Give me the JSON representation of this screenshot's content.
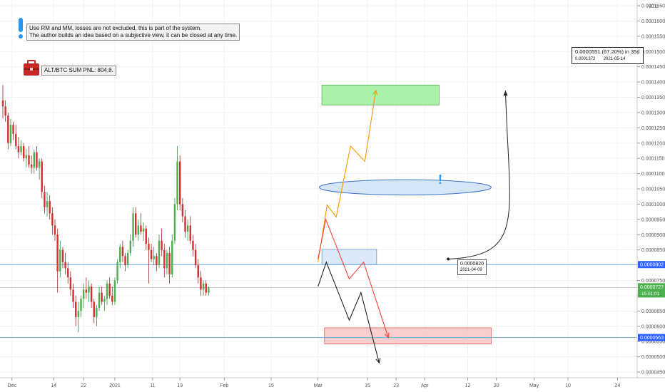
{
  "chart_data": {
    "type": "candlestick",
    "currency_label": "BTC",
    "ylim": [
      4.5e-05,
      0.000165
    ],
    "price_ticks": [
      "0.0001650",
      "0.0001600",
      "0.0001550",
      "0.0001500",
      "0.0001450",
      "0.0001400",
      "0.0001350",
      "0.0001300",
      "0.0001250",
      "0.0001200",
      "0.0001150",
      "0.0001100",
      "0.0001050",
      "0.0001000",
      "0.0000950",
      "0.0000900",
      "0.0000850",
      "0.0000800",
      "0.0000750",
      "0.0000700",
      "0.0000650",
      "0.0000600",
      "0.0000550",
      "0.0000500",
      "0.0000450"
    ],
    "time_ticks": [
      "Dec",
      "14",
      "22",
      "2021",
      "11",
      "19",
      "Feb",
      "15",
      "Mar",
      "15",
      "23",
      "Apr",
      "12",
      "20",
      "May",
      "10",
      "24"
    ],
    "level_tags": [
      {
        "text": "0.0000802",
        "value": 8.02e-05
      },
      {
        "text": "0.0000563",
        "value": 5.63e-05
      }
    ],
    "last_price": {
      "text": "0.0000727",
      "countdown": "15:01:01",
      "value": 7.27e-05
    },
    "note_lines": [
      "Use RM and MM, losses are not excluded, this is part of the system.",
      "The author builds an idea based on a subjective view, it can be closed at any time."
    ],
    "pnl_label": "ALT/BTC SUM PNL: 804,8.",
    "start_point": {
      "price": "0.0000820",
      "date": "2021-04-09"
    },
    "target_info": {
      "headline": "0.0000551 (67.20%) in 35d",
      "price": "0.0001372",
      "date": "2021-05-14"
    },
    "alert_mark": "!",
    "candles": [
      {
        "o": 0.000134,
        "h": 0.000139,
        "l": 0.000128,
        "c": 0.000132
      },
      {
        "o": 0.000132,
        "h": 0.000134,
        "l": 0.000127,
        "c": 0.000129
      },
      {
        "o": 0.000129,
        "h": 0.00013,
        "l": 0.000118,
        "c": 0.00012
      },
      {
        "o": 0.00012,
        "h": 0.000128,
        "l": 0.000119,
        "c": 0.000126
      },
      {
        "o": 0.000126,
        "h": 0.000127,
        "l": 0.000121,
        "c": 0.000123
      },
      {
        "o": 0.000123,
        "h": 0.000126,
        "l": 0.000118,
        "c": 0.000119
      },
      {
        "o": 0.000119,
        "h": 0.000122,
        "l": 0.000115,
        "c": 0.000117
      },
      {
        "o": 0.000117,
        "h": 0.000121,
        "l": 0.000116,
        "c": 0.000119
      },
      {
        "o": 0.000119,
        "h": 0.00012,
        "l": 0.000114,
        "c": 0.000115
      },
      {
        "o": 0.000115,
        "h": 0.000118,
        "l": 0.000112,
        "c": 0.000116
      },
      {
        "o": 0.000116,
        "h": 0.000119,
        "l": 0.000112,
        "c": 0.000113
      },
      {
        "o": 0.000113,
        "h": 0.000116,
        "l": 0.00011,
        "c": 0.000112
      },
      {
        "o": 0.000112,
        "h": 0.000118,
        "l": 0.00011,
        "c": 0.000117
      },
      {
        "o": 0.000117,
        "h": 0.000119,
        "l": 0.000111,
        "c": 0.000112
      },
      {
        "o": 0.000112,
        "h": 0.000115,
        "l": 0.000108,
        "c": 0.000114
      },
      {
        "o": 0.000114,
        "h": 0.000115,
        "l": 0.000102,
        "c": 0.000104
      },
      {
        "o": 0.000104,
        "h": 0.000106,
        "l": 9.7e-05,
        "c": 9.9e-05
      },
      {
        "o": 9.9e-05,
        "h": 0.000104,
        "l": 9.6e-05,
        "c": 0.000101
      },
      {
        "o": 0.000101,
        "h": 0.000103,
        "l": 9.5e-05,
        "c": 9.7e-05
      },
      {
        "o": 9.7e-05,
        "h": 9.9e-05,
        "l": 9e-05,
        "c": 9.3e-05
      },
      {
        "o": 9.3e-05,
        "h": 9.5e-05,
        "l": 8.8e-05,
        "c": 9e-05
      },
      {
        "o": 9e-05,
        "h": 9.2e-05,
        "l": 7.1e-05,
        "c": 7.8e-05
      },
      {
        "o": 7.8e-05,
        "h": 8.8e-05,
        "l": 7.6e-05,
        "c": 8.5e-05
      },
      {
        "o": 8.5e-05,
        "h": 8.6e-05,
        "l": 7.9e-05,
        "c": 8.1e-05
      },
      {
        "o": 8.1e-05,
        "h": 8.4e-05,
        "l": 7.7e-05,
        "c": 7.9e-05
      },
      {
        "o": 7.9e-05,
        "h": 8.1e-05,
        "l": 7.4e-05,
        "c": 7.6e-05
      },
      {
        "o": 7.6e-05,
        "h": 7.8e-05,
        "l": 7e-05,
        "c": 7.2e-05
      },
      {
        "o": 7.2e-05,
        "h": 7.4e-05,
        "l": 6.6e-05,
        "c": 6.8e-05
      },
      {
        "o": 6.8e-05,
        "h": 7e-05,
        "l": 6e-05,
        "c": 6.3e-05
      },
      {
        "o": 6.3e-05,
        "h": 6.8e-05,
        "l": 5.8e-05,
        "c": 6.5e-05
      },
      {
        "o": 6.5e-05,
        "h": 7e-05,
        "l": 6.3e-05,
        "c": 6.9e-05
      },
      {
        "o": 6.9e-05,
        "h": 7.4e-05,
        "l": 6.6e-05,
        "c": 7.2e-05
      },
      {
        "o": 7.2e-05,
        "h": 7.6e-05,
        "l": 6.9e-05,
        "c": 7.1e-05
      },
      {
        "o": 7.1e-05,
        "h": 7.5e-05,
        "l": 6.8e-05,
        "c": 7.3e-05
      },
      {
        "o": 7.3e-05,
        "h": 7.4e-05,
        "l": 6.6e-05,
        "c": 6.8e-05
      },
      {
        "o": 6.8e-05,
        "h": 6.9e-05,
        "l": 6.1e-05,
        "c": 6.3e-05
      },
      {
        "o": 6.3e-05,
        "h": 6.7e-05,
        "l": 6e-05,
        "c": 6.6e-05
      },
      {
        "o": 6.6e-05,
        "h": 7.3e-05,
        "l": 6.5e-05,
        "c": 7.1e-05
      },
      {
        "o": 7.1e-05,
        "h": 7.3e-05,
        "l": 6.7e-05,
        "c": 6.8e-05
      },
      {
        "o": 6.8e-05,
        "h": 7e-05,
        "l": 6.5e-05,
        "c": 6.9e-05
      },
      {
        "o": 6.9e-05,
        "h": 7.5e-05,
        "l": 6.7e-05,
        "c": 7.4e-05
      },
      {
        "o": 7.4e-05,
        "h": 7.6e-05,
        "l": 6.9e-05,
        "c": 7e-05
      },
      {
        "o": 7e-05,
        "h": 7.3e-05,
        "l": 6.7e-05,
        "c": 6.8e-05
      },
      {
        "o": 6.8e-05,
        "h": 7.6e-05,
        "l": 6.7e-05,
        "c": 7.5e-05
      },
      {
        "o": 7.5e-05,
        "h": 8.2e-05,
        "l": 7.4e-05,
        "c": 8.1e-05
      },
      {
        "o": 8.1e-05,
        "h": 8.7e-05,
        "l": 7.9e-05,
        "c": 8.6e-05
      },
      {
        "o": 8.6e-05,
        "h": 8.8e-05,
        "l": 8.1e-05,
        "c": 8.3e-05
      },
      {
        "o": 8.3e-05,
        "h": 8.4e-05,
        "l": 7.8e-05,
        "c": 8e-05
      },
      {
        "o": 8e-05,
        "h": 8.5e-05,
        "l": 7.9e-05,
        "c": 8.4e-05
      },
      {
        "o": 8.4e-05,
        "h": 9e-05,
        "l": 8.3e-05,
        "c": 8.8e-05
      },
      {
        "o": 8.8e-05,
        "h": 9.9e-05,
        "l": 8.6e-05,
        "c": 9.7e-05
      },
      {
        "o": 9.7e-05,
        "h": 9.9e-05,
        "l": 8.9e-05,
        "c": 9e-05
      },
      {
        "o": 9e-05,
        "h": 9.5e-05,
        "l": 8.8e-05,
        "c": 9.3e-05
      },
      {
        "o": 9.3e-05,
        "h": 9.7e-05,
        "l": 9e-05,
        "c": 9.1e-05
      },
      {
        "o": 9.1e-05,
        "h": 9.4e-05,
        "l": 8.8e-05,
        "c": 9.2e-05
      },
      {
        "o": 9.2e-05,
        "h": 9.3e-05,
        "l": 8.5e-05,
        "c": 8.7e-05
      },
      {
        "o": 8.7e-05,
        "h": 8.9e-05,
        "l": 7.4e-05,
        "c": 8.5e-05
      },
      {
        "o": 8.5e-05,
        "h": 8.7e-05,
        "l": 8.1e-05,
        "c": 8.2e-05
      },
      {
        "o": 8.2e-05,
        "h": 8.6e-05,
        "l": 8e-05,
        "c": 8.3e-05
      },
      {
        "o": 8.3e-05,
        "h": 8.4e-05,
        "l": 7.8e-05,
        "c": 8e-05
      },
      {
        "o": 8e-05,
        "h": 9e-05,
        "l": 7.9e-05,
        "c": 8.8e-05
      },
      {
        "o": 8.8e-05,
        "h": 9.2e-05,
        "l": 8.3e-05,
        "c": 8.5e-05
      },
      {
        "o": 8.5e-05,
        "h": 8.7e-05,
        "l": 7.6e-05,
        "c": 7.9e-05
      },
      {
        "o": 7.9e-05,
        "h": 8.5e-05,
        "l": 7.7e-05,
        "c": 8.4e-05
      },
      {
        "o": 8.4e-05,
        "h": 8.6e-05,
        "l": 7.4e-05,
        "c": 7.7e-05
      },
      {
        "o": 7.7e-05,
        "h": 9e-05,
        "l": 7.6e-05,
        "c": 8.8e-05
      },
      {
        "o": 8.8e-05,
        "h": 0.000102,
        "l": 8.7e-05,
        "c": 0.0001
      },
      {
        "o": 0.0001,
        "h": 0.000119,
        "l": 9.8e-05,
        "c": 0.000114
      },
      {
        "o": 0.000114,
        "h": 0.000116,
        "l": 9.8e-05,
        "c": 0.0001
      },
      {
        "o": 0.0001,
        "h": 0.000102,
        "l": 9.4e-05,
        "c": 9.6e-05
      },
      {
        "o": 9.6e-05,
        "h": 9.8e-05,
        "l": 8.9e-05,
        "c": 9.1e-05
      },
      {
        "o": 9.1e-05,
        "h": 9.5e-05,
        "l": 8.8e-05,
        "c": 9.3e-05
      },
      {
        "o": 9.3e-05,
        "h": 9.6e-05,
        "l": 8.7e-05,
        "c": 8.8e-05
      },
      {
        "o": 8.8e-05,
        "h": 9e-05,
        "l": 8.3e-05,
        "c": 8.5e-05
      },
      {
        "o": 8.5e-05,
        "h": 8.7e-05,
        "l": 7.9e-05,
        "c": 8e-05
      },
      {
        "o": 8e-05,
        "h": 8.2e-05,
        "l": 7.4e-05,
        "c": 7.6e-05
      },
      {
        "o": 7.6e-05,
        "h": 7.8e-05,
        "l": 7e-05,
        "c": 7.2e-05
      },
      {
        "o": 7.2e-05,
        "h": 7.5e-05,
        "l": 7e-05,
        "c": 7.4e-05
      },
      {
        "o": 7.4e-05,
        "h": 7.5e-05,
        "l": 7e-05,
        "c": 7.1e-05
      },
      {
        "o": 7.1e-05,
        "h": 7.3e-05,
        "l": 7e-05,
        "c": 7.27e-05
      }
    ],
    "horizontal_levels": [
      8.02e-05,
      7.27e-05,
      5.63e-05
    ],
    "zones": [
      {
        "kind": "target",
        "color": "#9cf09c",
        "border": "#4caf50",
        "t0": 122.5,
        "t1": 167.5,
        "p0": 0.0001325,
        "p1": 0.000139
      },
      {
        "kind": "alert",
        "color": "#cfe2f6",
        "border": "#3a73c5",
        "t0": 121.5,
        "t1": 187.5,
        "p0": 0.000103,
        "p1": 0.000108,
        "shape": "ellipse"
      },
      {
        "kind": "entry",
        "color": "#d4e4f6",
        "border": "#6a9cd8",
        "t0": 122.5,
        "t1": 143.5,
        "p0": 8.02e-05,
        "p1": 8.52e-05
      },
      {
        "kind": "stop",
        "color": "#f7c6c6",
        "border": "#e06060",
        "t0": 123.5,
        "t1": 187.5,
        "p0": 5.42e-05,
        "p1": 5.95e-05
      }
    ],
    "paths": [
      {
        "color": "#ff9800",
        "points": [
          [
            121.0,
            8.1e-05
          ],
          [
            124.5,
            9.97e-05
          ],
          [
            128.0,
            9.58e-05
          ],
          [
            133.5,
            0.000119
          ],
          [
            139.0,
            0.000114
          ],
          [
            143.2,
            0.0001372
          ]
        ]
      },
      {
        "color": "#f44336",
        "points": [
          [
            121.0,
            8.2e-05
          ],
          [
            124.0,
            9.5e-05
          ],
          [
            133.0,
            7.55e-05
          ],
          [
            138.5,
            8.1e-05
          ],
          [
            148.0,
            5.63e-05
          ]
        ]
      },
      {
        "color": "#222222",
        "points": [
          [
            121.0,
            7.3e-05
          ],
          [
            124.2,
            8.1e-05
          ],
          [
            133.0,
            6.2e-05
          ],
          [
            137.5,
            7.1e-05
          ],
          [
            144.5,
            4.8e-05
          ]
        ]
      }
    ],
    "projection": {
      "color": "#222222",
      "from": [
        171.0,
        8.2e-05
      ],
      "to": [
        193.0,
        0.0001372
      ]
    },
    "time_ticks_at": [
      3.5,
      19.5,
      31.0,
      43.0,
      57.5,
      68.0,
      85.0,
      103.0,
      121.0,
      140.0,
      151.0,
      162.0,
      178.5,
      189.5,
      204.0,
      217.0,
      236.0
    ]
  }
}
